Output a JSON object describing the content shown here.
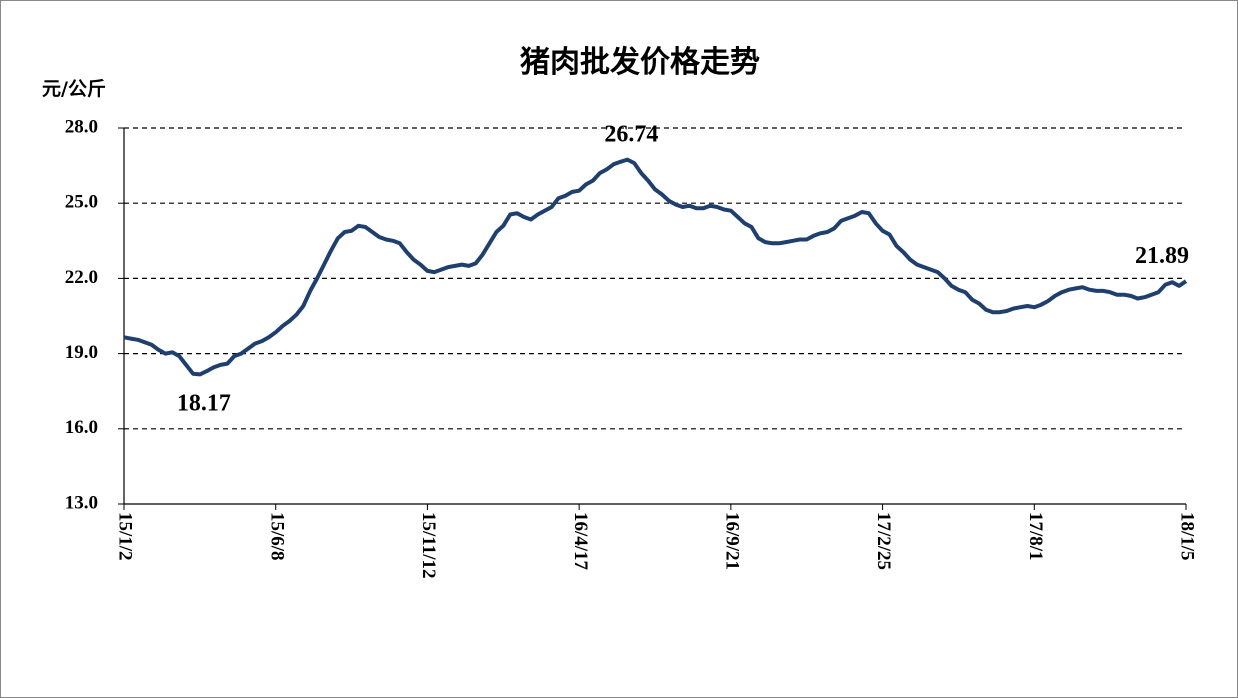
{
  "chart_data": {
    "type": "line",
    "title": "猪肉批发价格走势",
    "y_label": "元/公斤",
    "categories": [
      "15/1/2",
      null,
      null,
      null,
      null,
      null,
      null,
      null,
      null,
      null,
      null,
      null,
      null,
      null,
      null,
      null,
      null,
      null,
      null,
      null,
      null,
      null,
      "15/6/8",
      null,
      null,
      null,
      null,
      null,
      null,
      null,
      null,
      null,
      null,
      null,
      null,
      null,
      null,
      null,
      null,
      null,
      null,
      null,
      null,
      null,
      "15/11/12",
      null,
      null,
      null,
      null,
      null,
      null,
      null,
      null,
      null,
      null,
      null,
      null,
      null,
      null,
      null,
      null,
      null,
      null,
      null,
      null,
      null,
      "16/4/17",
      null,
      null,
      null,
      null,
      null,
      null,
      null,
      null,
      null,
      null,
      null,
      null,
      null,
      null,
      null,
      null,
      null,
      null,
      null,
      null,
      null,
      "16/9/21",
      null,
      null,
      null,
      null,
      null,
      null,
      null,
      null,
      null,
      null,
      null,
      null,
      null,
      null,
      null,
      null,
      null,
      null,
      null,
      null,
      null,
      "17/2/25",
      null,
      null,
      null,
      null,
      null,
      null,
      null,
      null,
      null,
      null,
      null,
      null,
      null,
      null,
      null,
      null,
      null,
      null,
      null,
      null,
      null,
      "17/8/1",
      null,
      null,
      null,
      null,
      null,
      null,
      null,
      null,
      null,
      null,
      null,
      null,
      null,
      null,
      null,
      null,
      null,
      null,
      null,
      null,
      null,
      "18/1/5"
    ],
    "series": [
      {
        "color": "#1f3f6e",
        "values": [
          19.65,
          19.6,
          19.55,
          19.45,
          19.35,
          19.15,
          19.0,
          19.05,
          18.9,
          18.55,
          18.2,
          18.17,
          18.3,
          18.45,
          18.55,
          18.6,
          18.9,
          19.0,
          19.2,
          19.4,
          19.5,
          19.65,
          19.85,
          20.1,
          20.3,
          20.55,
          20.9,
          21.5,
          22.0,
          22.55,
          23.1,
          23.6,
          23.85,
          23.9,
          24.1,
          24.05,
          23.85,
          23.65,
          23.55,
          23.5,
          23.4,
          23.05,
          22.75,
          22.55,
          22.3,
          22.25,
          22.35,
          22.45,
          22.5,
          22.55,
          22.5,
          22.6,
          22.95,
          23.4,
          23.85,
          24.1,
          24.55,
          24.6,
          24.45,
          24.35,
          24.55,
          24.7,
          24.85,
          25.2,
          25.3,
          25.45,
          25.5,
          25.75,
          25.9,
          26.2,
          26.35,
          26.55,
          26.65,
          26.74,
          26.6,
          26.2,
          25.9,
          25.55,
          25.35,
          25.1,
          24.95,
          24.85,
          24.9,
          24.8,
          24.8,
          24.9,
          24.85,
          24.75,
          24.7,
          24.45,
          24.2,
          24.05,
          23.6,
          23.45,
          23.4,
          23.4,
          23.45,
          23.5,
          23.55,
          23.55,
          23.7,
          23.8,
          23.85,
          24.0,
          24.3,
          24.4,
          24.5,
          24.65,
          24.6,
          24.2,
          23.9,
          23.75,
          23.3,
          23.05,
          22.75,
          22.55,
          22.45,
          22.35,
          22.25,
          22.0,
          21.7,
          21.55,
          21.45,
          21.15,
          21.0,
          20.75,
          20.65,
          20.65,
          20.7,
          20.8,
          20.85,
          20.9,
          20.85,
          20.95,
          21.1,
          21.3,
          21.45,
          21.55,
          21.6,
          21.65,
          21.55,
          21.5,
          21.5,
          21.45,
          21.35,
          21.35,
          21.3,
          21.2,
          21.25,
          21.35,
          21.45,
          21.75,
          21.85,
          21.7,
          21.89
        ]
      }
    ],
    "label_points": [
      11,
      73,
      154
    ],
    "ylim": [
      13,
      28
    ],
    "yticks": [
      {
        "value": 13,
        "label": "13.0"
      },
      {
        "value": 16,
        "label": "16.0"
      },
      {
        "value": 19,
        "label": "19.0"
      },
      {
        "value": 22,
        "label": "22.0"
      },
      {
        "value": 25,
        "label": "25.0"
      },
      {
        "value": 28,
        "label": "28.0"
      }
    ],
    "grid": true
  }
}
